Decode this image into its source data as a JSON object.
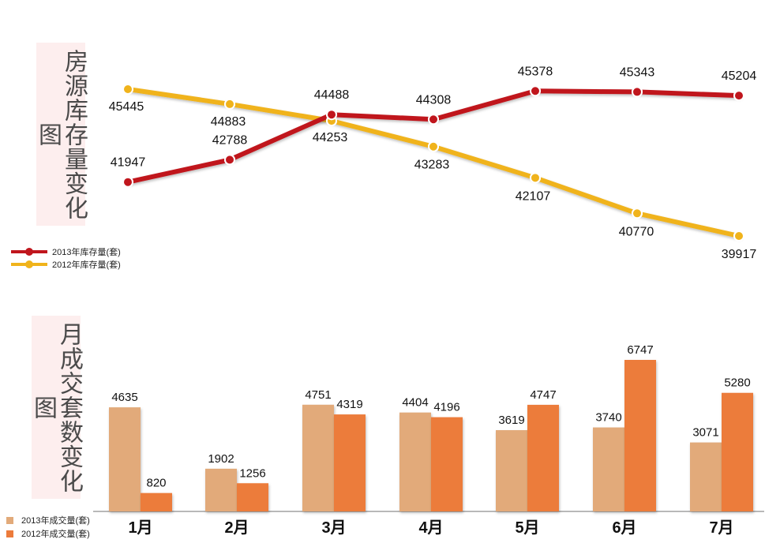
{
  "colors": {
    "red_line": "#c0161d",
    "yellow_line": "#f0b31b",
    "bar_2013": "#e2aa7a",
    "bar_2012": "#ec7b3b",
    "title_bg": "#fdeeee"
  },
  "top": {
    "title": "房源库存量变化图",
    "legend": [
      "2013年库存量(套)",
      "2012年库存量(套)"
    ]
  },
  "bottom": {
    "title": "月成交套数变化图",
    "legend": [
      "2013年成交量(套)",
      "2012年成交量(套)"
    ]
  },
  "chart_data": [
    {
      "type": "line",
      "title": "房源库存量变化图",
      "categories": [
        "1月",
        "2月",
        "3月",
        "4月",
        "5月",
        "6月",
        "7月"
      ],
      "series": [
        {
          "name": "2013年库存量(套)",
          "values": [
            41947,
            42788,
            44488,
            44308,
            45378,
            45343,
            45204
          ]
        },
        {
          "name": "2012年库存量(套)",
          "values": [
            45445,
            44883,
            44253,
            43283,
            42107,
            40770,
            39917
          ]
        }
      ],
      "ylim": [
        39917,
        45445
      ],
      "grid": false,
      "legend_position": "bottom-left"
    },
    {
      "type": "bar",
      "title": "月成交套数变化图",
      "categories": [
        "1月",
        "2月",
        "3月",
        "4月",
        "5月",
        "6月",
        "7月"
      ],
      "series": [
        {
          "name": "2013年成交量(套)",
          "values": [
            4635,
            1902,
            4751,
            4404,
            3619,
            3740,
            3071
          ]
        },
        {
          "name": "2012年成交量(套)",
          "values": [
            820,
            1256,
            4319,
            4196,
            4747,
            6747,
            5280
          ]
        }
      ],
      "ylim": [
        0,
        7500
      ],
      "grid": false,
      "legend_position": "bottom-left"
    }
  ]
}
